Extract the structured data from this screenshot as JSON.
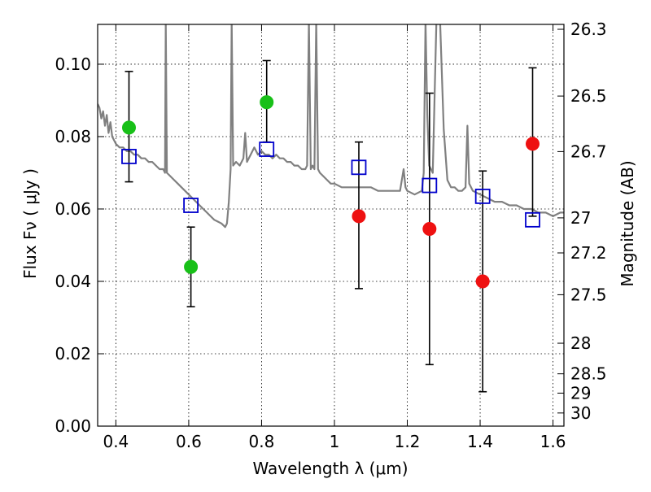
{
  "chart_data": {
    "type": "scatter",
    "xlabel": "Wavelength  λ (μm)",
    "ylabel": "Flux  Fν  ( μJy )",
    "ylabel_right": "Magnitude (AB)",
    "xlim": [
      0.35,
      1.63
    ],
    "ylim": [
      0.0,
      0.111
    ],
    "grid": true,
    "x_ticks": [
      {
        "value": 0.4,
        "label": "0.4"
      },
      {
        "value": 0.6,
        "label": "0.6"
      },
      {
        "value": 0.8,
        "label": "0.8"
      },
      {
        "value": 1.0,
        "label": "1"
      },
      {
        "value": 1.2,
        "label": "1.2"
      },
      {
        "value": 1.4,
        "label": "1.4"
      },
      {
        "value": 1.6,
        "label": "1.6"
      }
    ],
    "y_ticks": [
      {
        "value": 0.0,
        "label": "0.00"
      },
      {
        "value": 0.02,
        "label": "0.02"
      },
      {
        "value": 0.04,
        "label": "0.04"
      },
      {
        "value": 0.06,
        "label": "0.06"
      },
      {
        "value": 0.08,
        "label": "0.08"
      },
      {
        "value": 0.1,
        "label": "0.10"
      }
    ],
    "right_ticks": [
      {
        "mag": 26.3,
        "label": "26.3"
      },
      {
        "mag": 26.5,
        "label": "26.5"
      },
      {
        "mag": 26.7,
        "label": "26.7"
      },
      {
        "mag": 27.0,
        "label": "27"
      },
      {
        "mag": 27.2,
        "label": "27.2"
      },
      {
        "mag": 27.5,
        "label": "27.5"
      },
      {
        "mag": 28.0,
        "label": "28"
      },
      {
        "mag": 28.5,
        "label": "28.5"
      },
      {
        "mag": 29.0,
        "label": "29"
      },
      {
        "mag": 30.0,
        "label": "30"
      }
    ],
    "series": [
      {
        "marker": "line",
        "color": "#808080",
        "points": [
          [
            0.35,
            0.089
          ],
          [
            0.355,
            0.088
          ],
          [
            0.36,
            0.085
          ],
          [
            0.365,
            0.087
          ],
          [
            0.37,
            0.083
          ],
          [
            0.375,
            0.086
          ],
          [
            0.38,
            0.081
          ],
          [
            0.385,
            0.084
          ],
          [
            0.39,
            0.08
          ],
          [
            0.4,
            0.078
          ],
          [
            0.41,
            0.077
          ],
          [
            0.42,
            0.077
          ],
          [
            0.43,
            0.076
          ],
          [
            0.44,
            0.076
          ],
          [
            0.45,
            0.075
          ],
          [
            0.46,
            0.075
          ],
          [
            0.47,
            0.074
          ],
          [
            0.48,
            0.074
          ],
          [
            0.49,
            0.073
          ],
          [
            0.5,
            0.073
          ],
          [
            0.51,
            0.072
          ],
          [
            0.52,
            0.071
          ],
          [
            0.53,
            0.071
          ],
          [
            0.535,
            0.07
          ],
          [
            0.537,
            0.112
          ],
          [
            0.54,
            0.07
          ],
          [
            0.55,
            0.069
          ],
          [
            0.56,
            0.068
          ],
          [
            0.57,
            0.067
          ],
          [
            0.58,
            0.066
          ],
          [
            0.59,
            0.065
          ],
          [
            0.6,
            0.064
          ],
          [
            0.61,
            0.063
          ],
          [
            0.62,
            0.062
          ],
          [
            0.63,
            0.061
          ],
          [
            0.64,
            0.06
          ],
          [
            0.65,
            0.059
          ],
          [
            0.66,
            0.058
          ],
          [
            0.67,
            0.057
          ],
          [
            0.68,
            0.0565
          ],
          [
            0.69,
            0.056
          ],
          [
            0.7,
            0.055
          ],
          [
            0.705,
            0.056
          ],
          [
            0.71,
            0.062
          ],
          [
            0.715,
            0.071
          ],
          [
            0.718,
            0.112
          ],
          [
            0.722,
            0.072
          ],
          [
            0.73,
            0.073
          ],
          [
            0.74,
            0.072
          ],
          [
            0.75,
            0.074
          ],
          [
            0.755,
            0.081
          ],
          [
            0.76,
            0.073
          ],
          [
            0.77,
            0.075
          ],
          [
            0.78,
            0.077
          ],
          [
            0.79,
            0.075
          ],
          [
            0.8,
            0.076
          ],
          [
            0.81,
            0.075
          ],
          [
            0.82,
            0.075
          ],
          [
            0.83,
            0.074
          ],
          [
            0.84,
            0.075
          ],
          [
            0.85,
            0.074
          ],
          [
            0.86,
            0.074
          ],
          [
            0.87,
            0.073
          ],
          [
            0.88,
            0.073
          ],
          [
            0.89,
            0.072
          ],
          [
            0.9,
            0.072
          ],
          [
            0.91,
            0.071
          ],
          [
            0.92,
            0.071
          ],
          [
            0.925,
            0.072
          ],
          [
            0.93,
            0.112
          ],
          [
            0.935,
            0.071
          ],
          [
            0.94,
            0.072
          ],
          [
            0.945,
            0.071
          ],
          [
            0.95,
            0.112
          ],
          [
            0.955,
            0.071
          ],
          [
            0.96,
            0.07
          ],
          [
            0.97,
            0.069
          ],
          [
            0.98,
            0.068
          ],
          [
            0.99,
            0.067
          ],
          [
            1.0,
            0.067
          ],
          [
            1.02,
            0.066
          ],
          [
            1.04,
            0.066
          ],
          [
            1.06,
            0.066
          ],
          [
            1.08,
            0.066
          ],
          [
            1.1,
            0.066
          ],
          [
            1.12,
            0.065
          ],
          [
            1.14,
            0.065
          ],
          [
            1.16,
            0.065
          ],
          [
            1.18,
            0.065
          ],
          [
            1.19,
            0.071
          ],
          [
            1.195,
            0.066
          ],
          [
            1.2,
            0.065
          ],
          [
            1.22,
            0.064
          ],
          [
            1.24,
            0.065
          ],
          [
            1.245,
            0.07
          ],
          [
            1.25,
            0.112
          ],
          [
            1.255,
            0.086
          ],
          [
            1.26,
            0.072
          ],
          [
            1.27,
            0.07
          ],
          [
            1.28,
            0.112
          ],
          [
            1.29,
            0.112
          ],
          [
            1.3,
            0.082
          ],
          [
            1.31,
            0.068
          ],
          [
            1.32,
            0.066
          ],
          [
            1.33,
            0.066
          ],
          [
            1.34,
            0.065
          ],
          [
            1.35,
            0.065
          ],
          [
            1.36,
            0.066
          ],
          [
            1.365,
            0.083
          ],
          [
            1.37,
            0.067
          ],
          [
            1.38,
            0.065
          ],
          [
            1.4,
            0.064
          ],
          [
            1.42,
            0.063
          ],
          [
            1.44,
            0.062
          ],
          [
            1.46,
            0.062
          ],
          [
            1.48,
            0.061
          ],
          [
            1.5,
            0.061
          ],
          [
            1.52,
            0.06
          ],
          [
            1.54,
            0.06
          ],
          [
            1.56,
            0.059
          ],
          [
            1.58,
            0.059
          ],
          [
            1.6,
            0.058
          ],
          [
            1.62,
            0.059
          ],
          [
            1.63,
            0.059
          ]
        ]
      },
      {
        "marker": "circle",
        "color": "#18c018",
        "points": [
          {
            "x": 0.436,
            "y": 0.0825,
            "yerr_low": 0.0675,
            "yerr_high": 0.098
          },
          {
            "x": 0.606,
            "y": 0.044,
            "yerr_low": 0.033,
            "yerr_high": 0.055
          },
          {
            "x": 0.814,
            "y": 0.0895,
            "yerr_low": 0.0785,
            "yerr_high": 0.101
          }
        ]
      },
      {
        "marker": "circle",
        "color": "#ee1111",
        "points": [
          {
            "x": 1.067,
            "y": 0.058,
            "yerr_low": 0.038,
            "yerr_high": 0.0785
          },
          {
            "x": 1.261,
            "y": 0.0545,
            "yerr_low": 0.017,
            "yerr_high": 0.092
          },
          {
            "x": 1.407,
            "y": 0.04,
            "yerr_low": 0.0095,
            "yerr_high": 0.0705
          },
          {
            "x": 1.544,
            "y": 0.078,
            "yerr_low": 0.058,
            "yerr_high": 0.099
          }
        ]
      },
      {
        "marker": "square",
        "color": "#0000cc",
        "points": [
          {
            "x": 0.436,
            "y": 0.0745
          },
          {
            "x": 0.606,
            "y": 0.061
          },
          {
            "x": 0.814,
            "y": 0.0765
          },
          {
            "x": 1.067,
            "y": 0.0715
          },
          {
            "x": 1.261,
            "y": 0.0665
          },
          {
            "x": 1.407,
            "y": 0.0635
          },
          {
            "x": 1.544,
            "y": 0.057
          }
        ]
      }
    ]
  }
}
